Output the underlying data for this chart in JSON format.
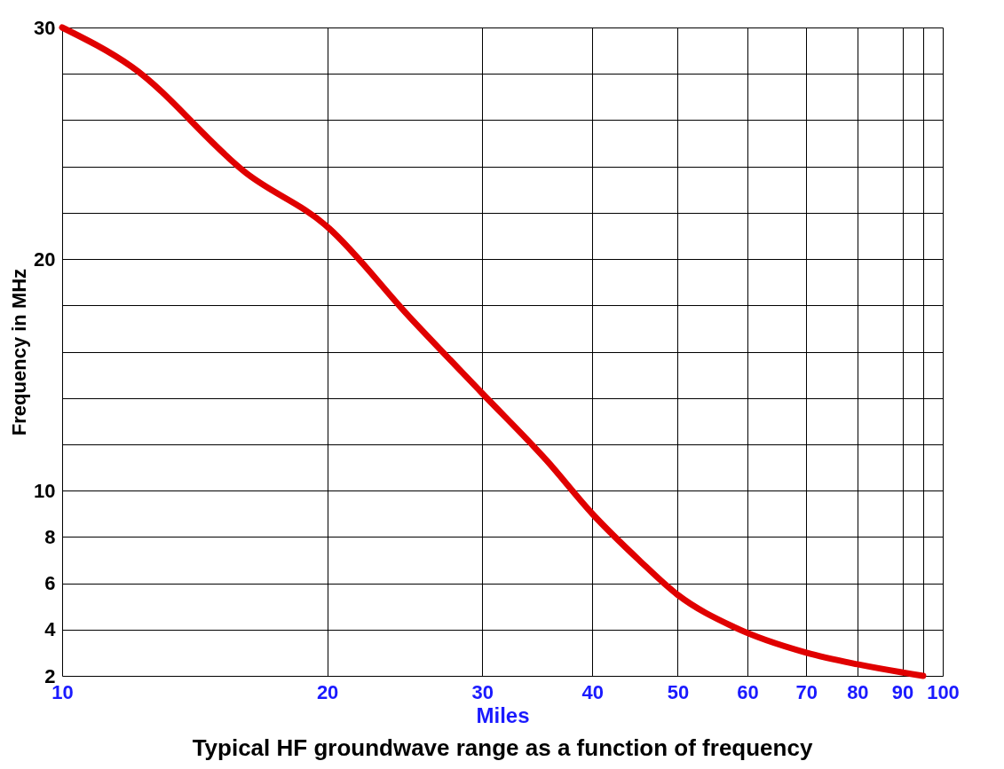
{
  "chart_data": {
    "type": "line",
    "title": "Typical HF groundwave range as a function of frequency",
    "xlabel": "Miles",
    "ylabel": "Frequency in MHz",
    "x": [
      10,
      12,
      16.2,
      20,
      24.8,
      30,
      35.5,
      40,
      45.2,
      50,
      58,
      70,
      80,
      95
    ],
    "series": [
      {
        "color": "#e00000",
        "values": [
          30,
          28.3,
          23.7,
          21.4,
          17.5,
          14.2,
          11.3,
          9.0,
          7.0,
          5.5,
          4.1,
          3.0,
          2.5,
          2.0
        ]
      }
    ],
    "log": "x",
    "xlim": [
      10,
      100
    ],
    "ylim": [
      2,
      30
    ],
    "xticks": [
      10,
      20,
      30,
      40,
      50,
      60,
      70,
      80,
      90,
      {
        "value": 95,
        "label": null
      },
      100
    ],
    "yticks": [
      2,
      4,
      6,
      8,
      10,
      {
        "value": 12,
        "label": null
      },
      {
        "value": 14,
        "label": null
      },
      {
        "value": 16,
        "label": null
      },
      {
        "value": 18,
        "label": null
      },
      20,
      {
        "value": 22,
        "label": null
      },
      {
        "value": 24,
        "label": null
      },
      {
        "value": 26,
        "label": null
      },
      {
        "value": 28,
        "label": null
      },
      30
    ],
    "grid": true,
    "marker": "none",
    "line_style": "solid"
  }
}
